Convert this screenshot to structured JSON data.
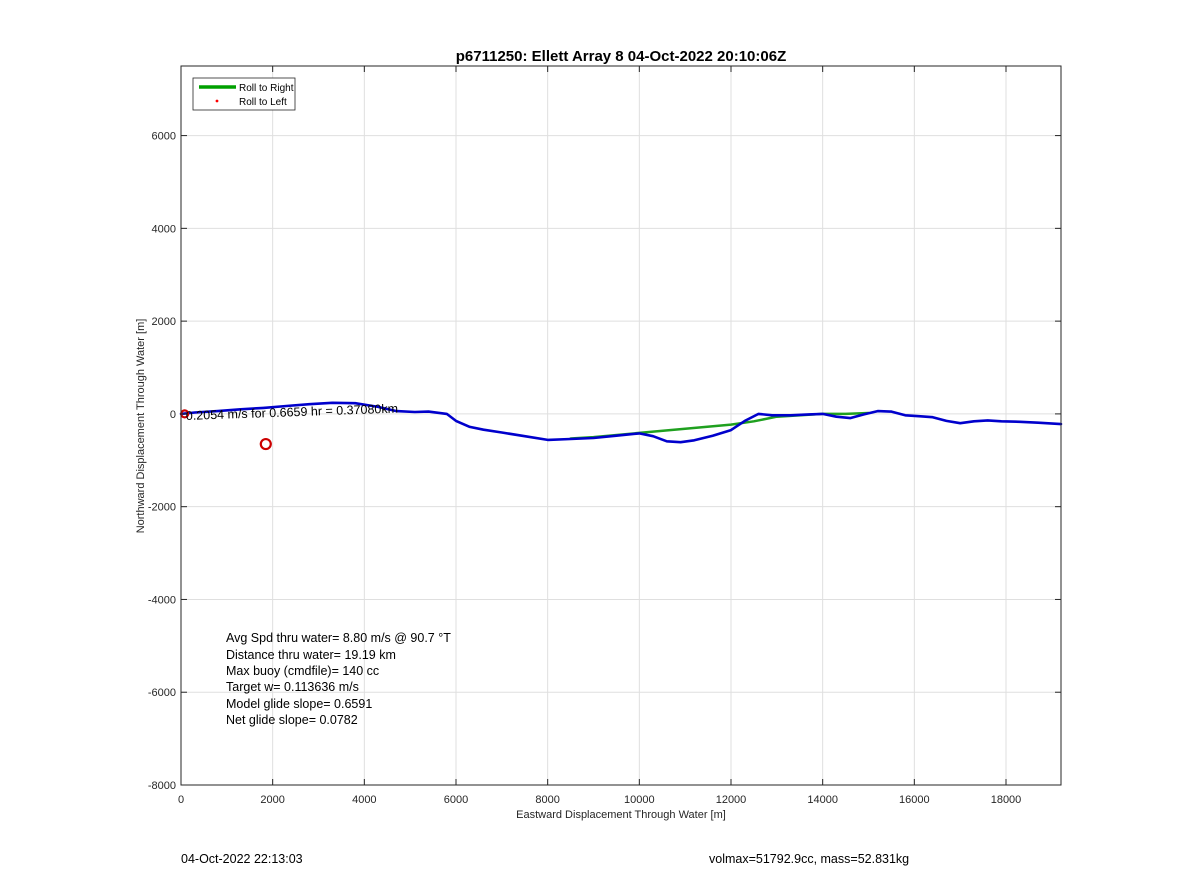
{
  "chart_data": {
    "type": "line",
    "title": "p6711250: Ellett Array 8 04-Oct-2022 20:10:06Z",
    "xlabel": "Eastward Displacement Through Water [m]",
    "ylabel": "Northward Displacement Through Water [m]",
    "xlim": [
      0,
      19200
    ],
    "ylim": [
      -8000,
      7500
    ],
    "xticks": [
      "0",
      "2000",
      "4000",
      "6000",
      "8000",
      "10000",
      "12000",
      "14000",
      "16000",
      "18000"
    ],
    "xtick_values": [
      0,
      2000,
      4000,
      6000,
      8000,
      10000,
      12000,
      14000,
      16000,
      18000
    ],
    "yticks": [
      "-8000",
      "-6000",
      "-4000",
      "-2000",
      "0",
      "2000",
      "4000",
      "6000"
    ],
    "ytick_values": [
      -8000,
      -6000,
      -4000,
      -2000,
      0,
      2000,
      4000,
      6000
    ],
    "grid": true,
    "legend_position": "top-left",
    "legend": [
      {
        "label": "Roll to Right",
        "color": "#00a000",
        "style": "line"
      },
      {
        "label": "Roll to Left",
        "color": "#ff0000",
        "style": "dot"
      }
    ],
    "series": [
      {
        "name": "Roll to Right",
        "color": "#1fa01f",
        "x": [
          8500,
          9000,
          10000,
          11000,
          12000,
          12500,
          13000,
          14000,
          14500,
          15000
        ],
        "y": [
          -530,
          -500,
          -410,
          -320,
          -230,
          -160,
          -60,
          0,
          0,
          20
        ]
      },
      {
        "color": "#0000cc",
        "x": [
          0,
          300,
          800,
          1300,
          1800,
          2300,
          2800,
          3300,
          3800,
          4300,
          4700,
          5100,
          5400,
          5800,
          6000,
          6300,
          6600,
          7000,
          7500,
          8000,
          8500,
          9000,
          9500,
          10000,
          10300,
          10600,
          10900,
          11200,
          11600,
          12000,
          12300,
          12600,
          12900,
          13300,
          13700,
          14000,
          14300,
          14600,
          14900,
          15200,
          15500,
          15800,
          16100,
          16400,
          16700,
          17000,
          17300,
          17600,
          17900,
          18300,
          18700,
          19200
        ],
        "y": [
          0,
          30,
          60,
          100,
          130,
          170,
          210,
          240,
          230,
          150,
          60,
          40,
          50,
          0,
          -150,
          -280,
          -340,
          -400,
          -480,
          -560,
          -540,
          -520,
          -470,
          -420,
          -480,
          -590,
          -610,
          -570,
          -470,
          -350,
          -150,
          0,
          -30,
          -30,
          -10,
          0,
          -60,
          -90,
          -10,
          60,
          50,
          -30,
          -50,
          -70,
          -150,
          -200,
          -160,
          -140,
          -160,
          -170,
          -190,
          -220
        ]
      }
    ],
    "markers": [
      {
        "x": 1850,
        "y": -650,
        "shape": "circle",
        "color": "#cc0000"
      },
      {
        "x": 80,
        "y": 0,
        "shape": "circle",
        "color": "#cc0000"
      }
    ],
    "overlay_labels": [
      {
        "text": "0.2054 m/s for 0.6659 hr = 0.37080km",
        "x": 200,
        "y": 230
      }
    ],
    "annotation_lines": [
      "Avg Spd thru water=  8.80 m/s @  90.7 °T",
      "Distance thru water= 19.19 km",
      "Max buoy (cmdfile)= 140 cc",
      "Target w= 0.113636 m/s",
      "Model glide slope= 0.6591",
      "Net glide slope= 0.0782"
    ]
  },
  "footer": {
    "left": "04-Oct-2022 22:13:03",
    "right": "volmax=51792.9cc, mass=52.831kg"
  }
}
